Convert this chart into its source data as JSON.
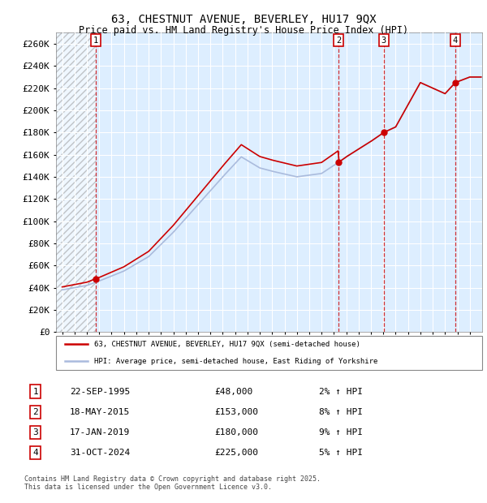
{
  "title1": "63, CHESTNUT AVENUE, BEVERLEY, HU17 9QX",
  "title2": "Price paid vs. HM Land Registry's House Price Index (HPI)",
  "red_label": "63, CHESTNUT AVENUE, BEVERLEY, HU17 9QX (semi-detached house)",
  "blue_label": "HPI: Average price, semi-detached house, East Riding of Yorkshire",
  "footer": "Contains HM Land Registry data © Crown copyright and database right 2025.\nThis data is licensed under the Open Government Licence v3.0.",
  "sales": [
    {
      "num": 1,
      "date": "22-SEP-1995",
      "price": 48000,
      "pct": "2%",
      "dir": "↑",
      "year": 1995.72
    },
    {
      "num": 2,
      "date": "18-MAY-2015",
      "price": 153000,
      "pct": "8%",
      "dir": "↑",
      "year": 2015.37
    },
    {
      "num": 3,
      "date": "17-JAN-2019",
      "price": 180000,
      "pct": "9%",
      "dir": "↑",
      "year": 2019.04
    },
    {
      "num": 4,
      "date": "31-OCT-2024",
      "price": 225000,
      "pct": "5%",
      "dir": "↑",
      "year": 2024.83
    }
  ],
  "ylim": [
    0,
    270000
  ],
  "xlim": [
    1992.5,
    2027
  ],
  "yticks": [
    0,
    20000,
    40000,
    60000,
    80000,
    100000,
    120000,
    140000,
    160000,
    180000,
    200000,
    220000,
    240000,
    260000
  ],
  "ytick_labels": [
    "£0",
    "£20K",
    "£40K",
    "£60K",
    "£80K",
    "£100K",
    "£120K",
    "£140K",
    "£160K",
    "£180K",
    "£200K",
    "£220K",
    "£240K",
    "£260K"
  ],
  "bg_color": "#ddeeff",
  "grid_color": "#ffffff",
  "red_color": "#cc0000",
  "blue_color": "#aabbdd",
  "hpi_knots_x": [
    1993,
    1995,
    1996,
    1998,
    2000,
    2002,
    2004,
    2006,
    2007.5,
    2009,
    2010,
    2012,
    2014,
    2015.37,
    2016,
    2018,
    2019.04,
    2020,
    2021,
    2022,
    2023,
    2024,
    2024.83,
    2026
  ],
  "hpi_knots_y": [
    38000,
    42000,
    46000,
    55000,
    68000,
    90000,
    115000,
    140000,
    158000,
    148000,
    145000,
    140000,
    143000,
    153000,
    158000,
    172000,
    180000,
    185000,
    205000,
    225000,
    220000,
    215000,
    225000,
    230000
  ]
}
